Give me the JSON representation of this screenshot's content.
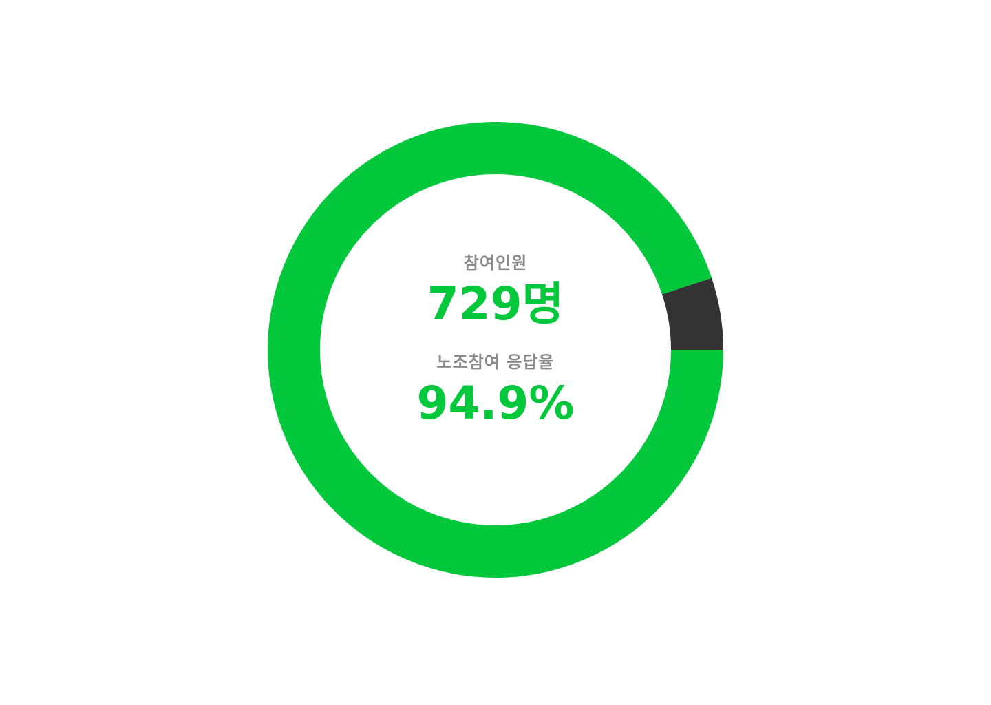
{
  "participants": {
    "label": "참여인원",
    "value": "729명"
  },
  "response_rate": {
    "label": "노조참여 응답율",
    "value": "94.9%"
  },
  "colors": {
    "respondents": "#03c83c",
    "remainder": "#333333",
    "label": "#8a8a8a",
    "background": "#ffffff"
  },
  "chart_data": {
    "type": "pie",
    "slices": [
      {
        "value": 94.9,
        "color": "#03c83c"
      },
      {
        "value": 5.1,
        "color": "#333333"
      }
    ],
    "start_angle": "3 o'clock",
    "direction": "clockwise"
  }
}
